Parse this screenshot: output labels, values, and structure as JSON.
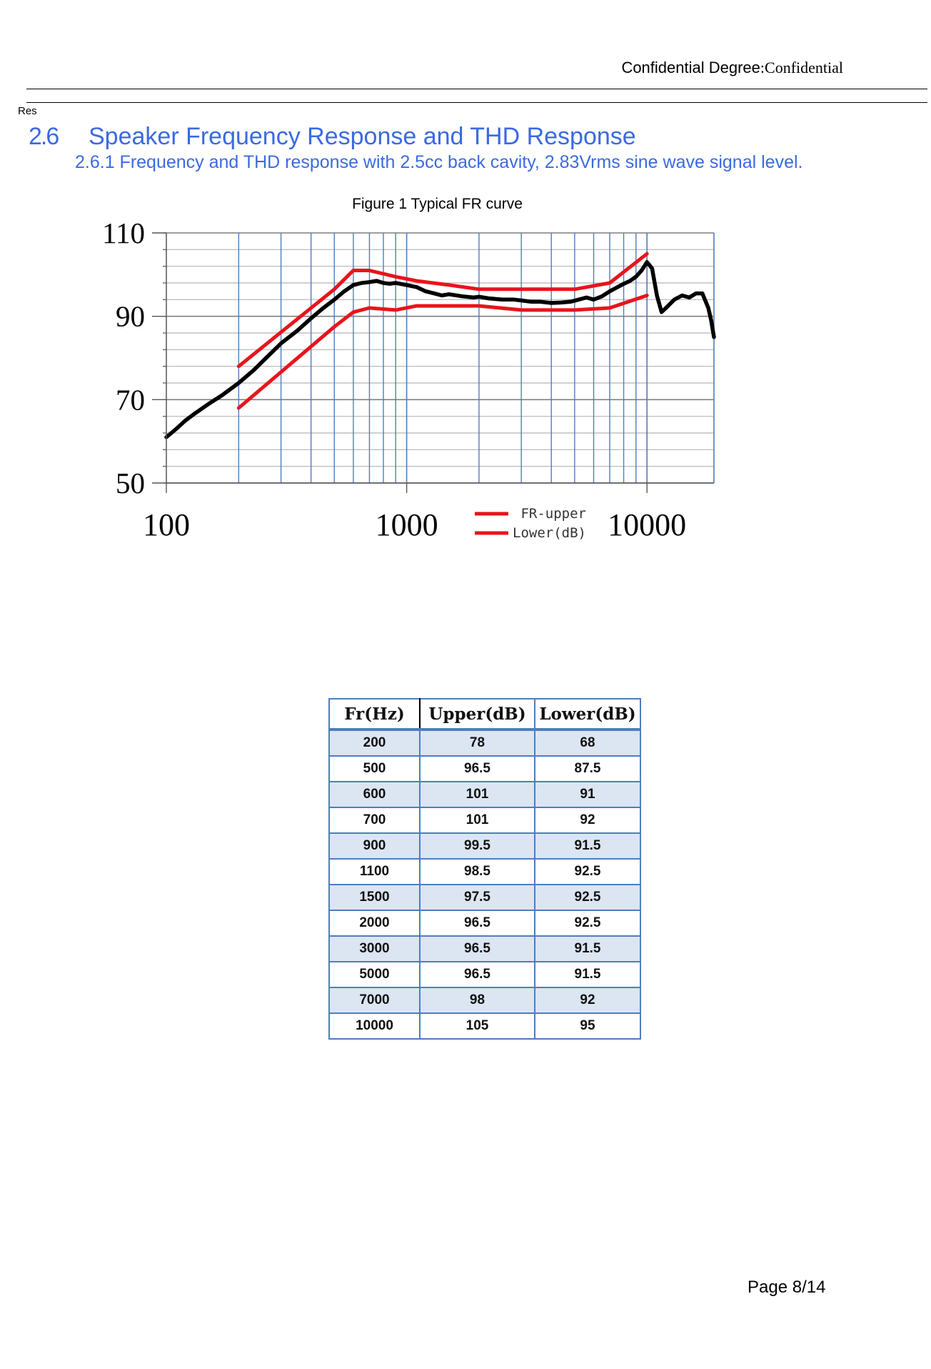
{
  "header": {
    "confidential_label": "Confidential Degree",
    "confidential_value": ":Confidential"
  },
  "res_label": "Res",
  "section": {
    "number": "2.6",
    "title": "Speaker Frequency Response and THD Response",
    "subsection": "2.6.1 Frequency and THD response with 2.5cc back cavity, 2.83Vrms sine wave signal level."
  },
  "figure": {
    "caption": "Figure 1 Typical FR curve"
  },
  "colors": {
    "heading": "#3b6ae0",
    "grid": "#4f7dbc",
    "limit_lines": "#e8141b",
    "measured": "#000000",
    "table_stripe": "#dce5f2"
  },
  "chart_data": {
    "type": "line",
    "title": "",
    "xlabel": "",
    "ylabel": "",
    "x_scale": "log",
    "xlim": [
      100,
      19000
    ],
    "ylim": [
      50,
      110
    ],
    "x_ticks": [
      "100",
      "1000",
      "10000"
    ],
    "y_ticks": [
      "110",
      "90",
      "70",
      "50"
    ],
    "grid": true,
    "legend_position": "bottom-center",
    "series": [
      {
        "name": "FR-upper",
        "color": "#e8141b",
        "x": [
          200,
          500,
          600,
          700,
          900,
          1100,
          1500,
          2000,
          3000,
          5000,
          7000,
          10000
        ],
        "y": [
          78,
          96.5,
          101,
          101,
          99.5,
          98.5,
          97.5,
          96.5,
          96.5,
          96.5,
          98,
          105
        ]
      },
      {
        "name": "Lower(dB)",
        "color": "#e8141b",
        "x": [
          200,
          500,
          600,
          700,
          900,
          1100,
          1500,
          2000,
          3000,
          5000,
          7000,
          10000
        ],
        "y": [
          68,
          87.5,
          91,
          92,
          91.5,
          92.5,
          92.5,
          92.5,
          91.5,
          91.5,
          92,
          95
        ]
      },
      {
        "color": "#000000",
        "x": [
          100,
          110,
          120,
          130,
          150,
          170,
          200,
          230,
          260,
          300,
          350,
          400,
          450,
          500,
          550,
          600,
          650,
          700,
          750,
          800,
          850,
          900,
          1000,
          1100,
          1200,
          1300,
          1400,
          1500,
          1700,
          1900,
          2000,
          2200,
          2500,
          2800,
          3000,
          3300,
          3600,
          4000,
          4400,
          4800,
          5200,
          5600,
          6000,
          6500,
          7000,
          8000,
          8500,
          9000,
          9500,
          10000,
          10500,
          11000,
          11500,
          12000,
          13000,
          14000,
          15000,
          16000,
          17000,
          18000,
          18500,
          19000
        ],
        "y": [
          61,
          63,
          65,
          66.5,
          69,
          71,
          74,
          77,
          80,
          83.5,
          86.5,
          89.5,
          92,
          94,
          96,
          97.5,
          98,
          98.2,
          98.5,
          98,
          97.8,
          98,
          97.5,
          97,
          96,
          95.5,
          95,
          95.3,
          94.8,
          94.5,
          94.7,
          94.3,
          94,
          94,
          93.8,
          93.5,
          93.5,
          93.2,
          93.3,
          93.5,
          94,
          94.5,
          94,
          94.8,
          96,
          97.8,
          98.5,
          99.5,
          101,
          103,
          101.5,
          95,
          91,
          92,
          94,
          95,
          94.5,
          95.5,
          95.5,
          92,
          89,
          85
        ]
      }
    ]
  },
  "table": {
    "headers": [
      "Fr(Hz)",
      "Upper(dB)",
      "Lower(dB)"
    ],
    "rows": [
      [
        "200",
        "78",
        "68"
      ],
      [
        "500",
        "96.5",
        "87.5"
      ],
      [
        "600",
        "101",
        "91"
      ],
      [
        "700",
        "101",
        "92"
      ],
      [
        "900",
        "99.5",
        "91.5"
      ],
      [
        "1100",
        "98.5",
        "92.5"
      ],
      [
        "1500",
        "97.5",
        "92.5"
      ],
      [
        "2000",
        "96.5",
        "92.5"
      ],
      [
        "3000",
        "96.5",
        "91.5"
      ],
      [
        "5000",
        "96.5",
        "91.5"
      ],
      [
        "7000",
        "98",
        "92"
      ],
      [
        "10000",
        "105",
        "95"
      ]
    ]
  },
  "footer": {
    "page": "Page 8/14"
  }
}
